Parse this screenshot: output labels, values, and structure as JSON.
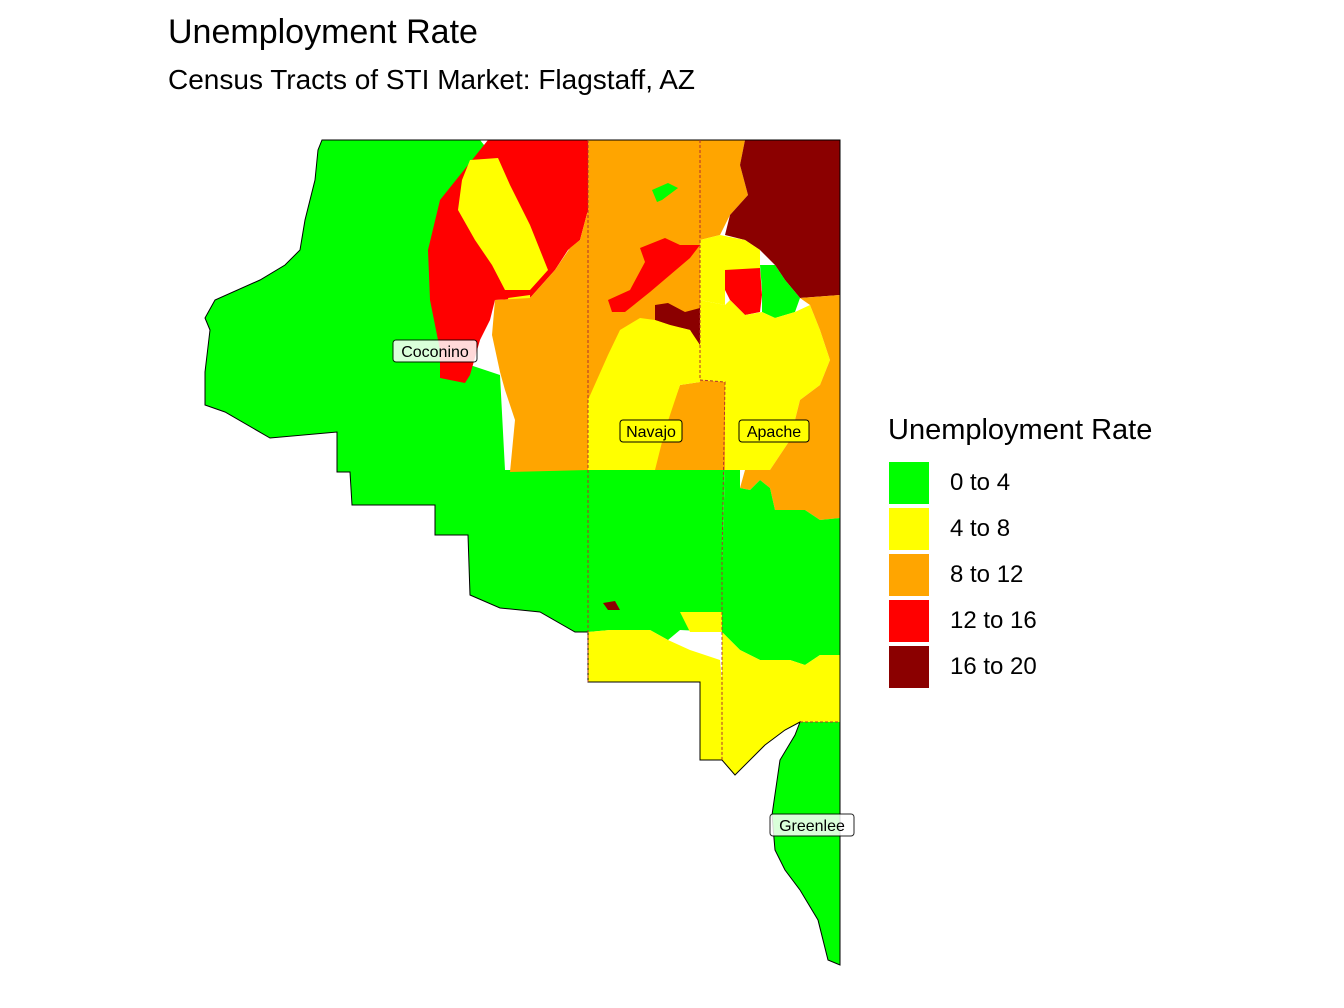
{
  "title": "Unemployment Rate",
  "subtitle": "Census Tracts of STI Market: Flagstaff, AZ",
  "legend": {
    "title": "Unemployment Rate",
    "items": [
      {
        "label": "0 to 4",
        "color": "#00ff00"
      },
      {
        "label": "4 to 8",
        "color": "#ffff00"
      },
      {
        "label": "8 to 12",
        "color": "#ffa500"
      },
      {
        "label": "12 to 16",
        "color": "#ff0000"
      },
      {
        "label": "16 to 20",
        "color": "#8b0000"
      }
    ]
  },
  "counties": {
    "coconino": "Coconino",
    "navajo": "Navajo",
    "apache": "Apache",
    "greenlee": "Greenlee"
  }
}
